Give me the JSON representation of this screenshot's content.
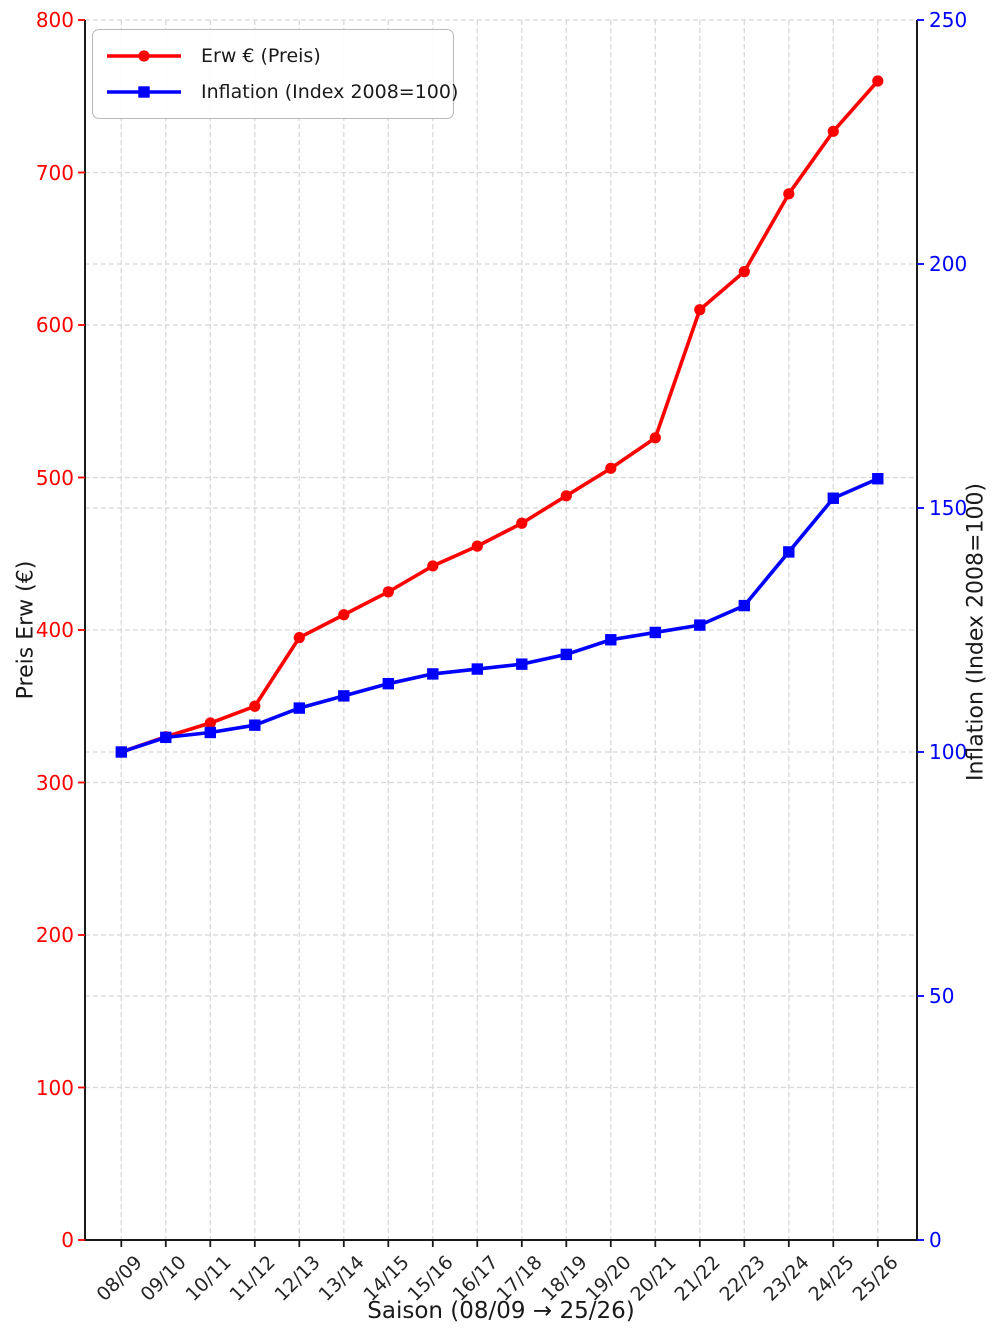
{
  "figure": {
    "background": "#ffffff",
    "legend": {
      "position": "upper left",
      "entries": [
        {
          "label": "Erw € (Preis)",
          "color": "#ff0000",
          "marker": "circle",
          "icon": "red-line-circle-marker-icon"
        },
        {
          "label": "Inflation (Index 2008=100)",
          "color": "#0000ff",
          "marker": "square",
          "icon": "blue-line-square-marker-icon"
        }
      ]
    }
  },
  "colors": {
    "series_red": "#ff0000",
    "series_blue": "#0000ff",
    "left_axis_text": "#ff0000",
    "right_axis_text": "#0000ff",
    "x_axis_text": "#262626",
    "grid": "#d8d8d8",
    "spine": "#1a1a1a"
  },
  "chart_data": {
    "type": "line",
    "categories": [
      "08/09",
      "09/10",
      "10/11",
      "11/12",
      "12/13",
      "13/14",
      "14/15",
      "15/16",
      "16/17",
      "17/18",
      "18/19",
      "19/20",
      "20/21",
      "21/22",
      "22/23",
      "23/24",
      "24/25",
      "25/26"
    ],
    "series": [
      {
        "name": "Erw € (Preis)",
        "axis": "left",
        "color": "#ff0000",
        "marker": "circle",
        "values": [
          320,
          330,
          339,
          350,
          395,
          410,
          425,
          442,
          455,
          470,
          488,
          506,
          526,
          610,
          635,
          686,
          727,
          760
        ]
      },
      {
        "name": "Inflation (Index 2008=100)",
        "axis": "right",
        "color": "#0000ff",
        "marker": "square",
        "values": [
          100,
          103,
          104,
          105.5,
          109,
          111.5,
          114,
          116,
          117,
          118,
          120,
          123,
          124.5,
          126,
          130,
          141,
          152,
          156
        ]
      }
    ],
    "title": "",
    "xlabel": "Saison (08/09 → 25/26)",
    "ylabel_left": "Preis Erw (€)",
    "ylabel_right": "Inflation (Index 2008=100)",
    "ylim_left": [
      0,
      800
    ],
    "ylim_right": [
      0,
      250
    ],
    "yticks_left": [
      0,
      100,
      200,
      300,
      400,
      500,
      600,
      700,
      800
    ],
    "yticks_right": [
      0,
      50,
      100,
      150,
      200,
      250
    ],
    "grid": true,
    "grid_style": "dashed",
    "legend_position": "upper left"
  }
}
